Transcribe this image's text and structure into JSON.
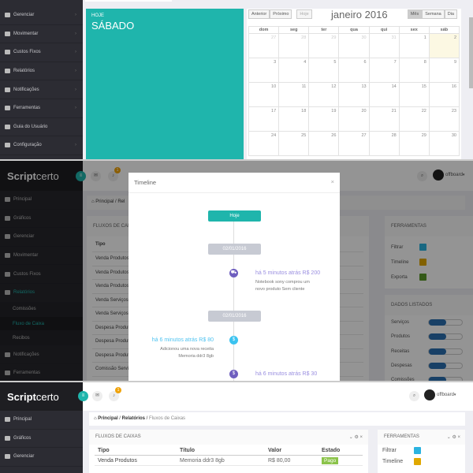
{
  "top": {
    "sidebar": [
      {
        "label": "Gerenciar",
        "icon": "book-icon"
      },
      {
        "label": "Movimentar",
        "icon": "edit-icon"
      },
      {
        "label": "Custos Fixos",
        "icon": "refresh-icon"
      },
      {
        "label": "Relatórios",
        "icon": "chart-icon"
      },
      {
        "label": "Notificações",
        "icon": "envelope-icon"
      },
      {
        "label": "Ferramentas",
        "icon": "briefcase-icon"
      },
      {
        "label": "Guia do Usuário",
        "icon": "help-icon"
      },
      {
        "label": "Configuração",
        "icon": "gear-icon"
      }
    ],
    "today_label": "HOJE",
    "today_day": "SÁBADO",
    "calendar": {
      "prev": "Anterior",
      "next": "Próximo",
      "today": "Hoje",
      "title": "janeiro 2016",
      "views": [
        "Mês",
        "Semana",
        "Dia"
      ],
      "weekdays": [
        "dom",
        "seg",
        "ter",
        "qua",
        "qui",
        "sex",
        "sáb"
      ],
      "weeks": [
        [
          "27",
          "28",
          "29",
          "30",
          "31",
          "1",
          "2"
        ],
        [
          "3",
          "4",
          "5",
          "6",
          "7",
          "8",
          "9"
        ],
        [
          "10",
          "11",
          "12",
          "13",
          "14",
          "15",
          "16"
        ],
        [
          "17",
          "18",
          "19",
          "20",
          "21",
          "22",
          "23"
        ],
        [
          "24",
          "25",
          "26",
          "27",
          "28",
          "29",
          "30"
        ]
      ]
    }
  },
  "brand": {
    "bold": "Scriptcerto",
    "logo_a": "Script",
    "logo_b": "certo"
  },
  "user": "offboard",
  "notif_count": "1",
  "middle": {
    "sidebar": [
      {
        "label": "Principal"
      },
      {
        "label": "Gráficos"
      },
      {
        "label": "Gerenciar"
      },
      {
        "label": "Movimentar"
      },
      {
        "label": "Custos Fixos"
      },
      {
        "label": "Relatórios"
      },
      {
        "label": "Comissões"
      },
      {
        "label": "Fluxo de Caixa"
      },
      {
        "label": "Recibos"
      },
      {
        "label": "Notificações"
      },
      {
        "label": "Ferramentas"
      }
    ],
    "breadcrumb": [
      "Principal",
      "Rel"
    ],
    "panel_title": "FLUXOS DE CAIXA",
    "col_tipo": "Tipo",
    "rows": [
      "Venda Produtos",
      "Venda Produtos",
      "Venda Produtos",
      "Venda Serviços",
      "Venda Serviços",
      "Despesa Produtos",
      "Despesa Produtos",
      "Despesa Produtos",
      "Comissão Serviços"
    ],
    "tools_title": "FERRAMENTAS",
    "tools": [
      {
        "label": "Filtrar",
        "color": "#2bb3e0"
      },
      {
        "label": "Timeline",
        "color": "#e0a800"
      },
      {
        "label": "Exporta",
        "color": "#5a9a2a"
      }
    ],
    "listed_title": "DADOS LISTADOS",
    "listed": [
      "Serviços",
      "Produtos",
      "Receitas",
      "Despesas",
      "Comissões"
    ],
    "modal": {
      "title": "Timeline",
      "close": "×",
      "today": "Hoje",
      "date1": "02/01/2016",
      "date2": "02/01/2016",
      "events": [
        {
          "time": "há 5 minutos atrás R$ 200",
          "text1": "Notebook sony comprou um",
          "text2": "novo produto Sem cliente"
        },
        {
          "time": "há 6 minutos atrás R$ 80",
          "text1": "Adicionou uma nova receita",
          "text2": "Memoria ddr3 8gb"
        },
        {
          "time": "há 6 minutos atrás R$ 30"
        }
      ]
    }
  },
  "bottom": {
    "sidebar": [
      "Principal",
      "Gráficos",
      "Gerenciar"
    ],
    "breadcrumb": [
      "Principal",
      "Relatórios",
      "Fluxos de Caixas"
    ],
    "panel_title": "FLUXOS DE CAIXAS",
    "columns": [
      "Tipo",
      "Título",
      "Valor",
      "Estado"
    ],
    "row": {
      "tipo": "Venda Produtos",
      "titulo": "Memoria ddr3 8gb",
      "valor": "R$ 80,00",
      "estado": "Pago"
    },
    "tools_title": "FERRAMENTAS",
    "tools": [
      "Filtrar",
      "Timeline"
    ]
  }
}
